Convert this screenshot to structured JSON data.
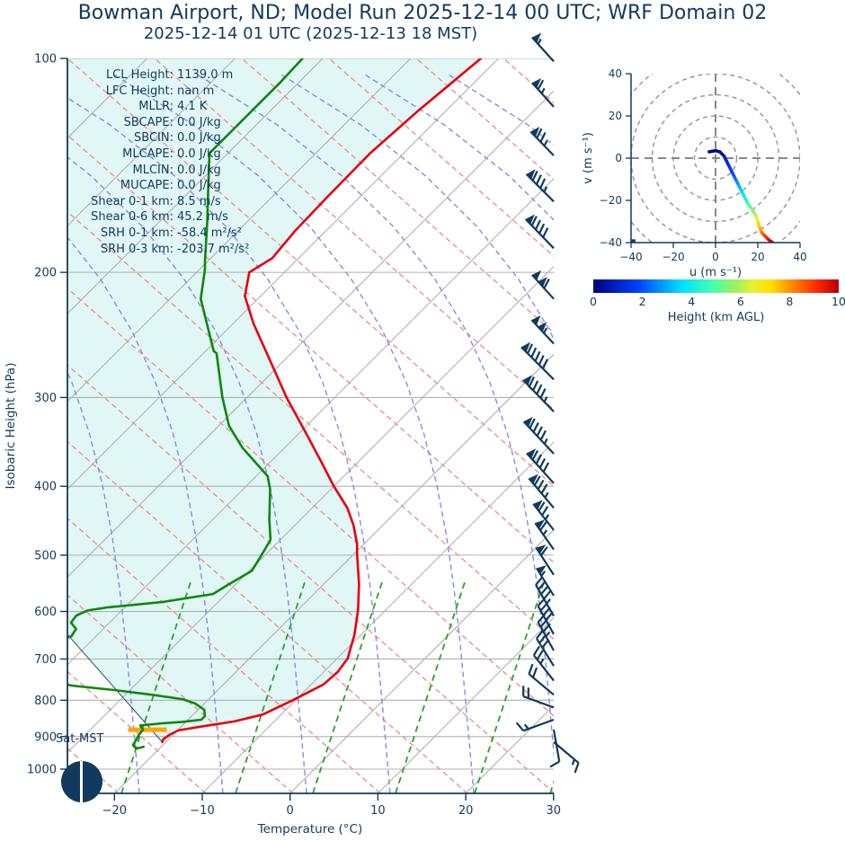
{
  "page": {
    "title": "Bowman Airport, ND; Model Run 2025-12-14 00 UTC; WRF Domain 02",
    "subtitle": "2025-12-14 01 UTC  (2025-12-13 18 MST)"
  },
  "skewt": {
    "xlabel": "Temperature (°C)",
    "ylabel": "Isobaric Height (hPa)",
    "x_tick_values": [
      -20,
      -10,
      0,
      10,
      20,
      30
    ],
    "x_tick_labels": [
      "−20",
      "−10",
      "0",
      "10",
      "20",
      "30"
    ],
    "y_tick_values": [
      100,
      200,
      300,
      400,
      500,
      600,
      700,
      800,
      900,
      1000
    ],
    "y_tick_labels": [
      "100",
      "200",
      "300",
      "400",
      "500",
      "600",
      "700",
      "800",
      "900",
      "1000"
    ],
    "surface_label": "Sat-MST",
    "moon_icon": "new-moon-dark-circle-with-vertical-line",
    "stats": [
      {
        "label": "LCL Height:",
        "value": "1139.0 m"
      },
      {
        "label": "LFC Height:",
        "value": "nan m"
      },
      {
        "label": "MLLR:",
        "value": "4.1 K"
      },
      {
        "label": "SBCAPE:",
        "value": "0.0 J/kg"
      },
      {
        "label": "SBCIN:",
        "value": "0.0 J/kg"
      },
      {
        "label": "MLCAPE:",
        "value": "0.0 J/kg"
      },
      {
        "label": "MLCIN:",
        "value": "0.0 J/kg"
      },
      {
        "label": "MUCAPE:",
        "value": "0.0 J/kg"
      },
      {
        "label": "Shear 0-1 km:",
        "value": "8.5 m/s"
      },
      {
        "label": "Shear 0-6 km:",
        "value": "45.2 m/s"
      },
      {
        "label": "SRH 0-1 km:",
        "value": "-58.4 m²/s²"
      },
      {
        "label": "SRH 0-3 km:",
        "value": "-203.7 m²/s²"
      }
    ],
    "colors": {
      "navy": "#123a5e",
      "temperature": "#e8000e",
      "dewpoint": "#0d870d",
      "isotherm_gray": "#b0b0b0",
      "dry_adiabat": "#f09090",
      "moist_adiabat": "#8a8ae8",
      "mixing_ratio": "#2ca02c",
      "shade_fill": "#e0f7f6",
      "lcl_marker": "#ffa500"
    }
  },
  "chart_data": [
    {
      "type": "line",
      "name": "skewt-sounding",
      "xlabel": "Temperature (°C)",
      "ylabel": "Isobaric Height (hPa)",
      "xlim": [
        -25.4,
        30
      ],
      "plim": [
        100,
        1081
      ],
      "skew_deg": 45,
      "series": [
        {
          "name": "temperature",
          "units": [
            "hPa",
            "degC"
          ],
          "points": [
            [
              100,
              -62.0
            ],
            [
              119,
              -63.2
            ],
            [
              136,
              -63.8
            ],
            [
              157,
              -63.7
            ],
            [
              175,
              -63.5
            ],
            [
              191,
              -63.0
            ],
            [
              200,
              -64.0
            ],
            [
              216,
              -61.8
            ],
            [
              236,
              -57.7
            ],
            [
              265,
              -51.8
            ],
            [
              300,
              -45.5
            ],
            [
              340,
              -38.7
            ],
            [
              371,
              -34.0
            ],
            [
              400,
              -30.0
            ],
            [
              429,
              -26.0
            ],
            [
              454,
              -23.3
            ],
            [
              482,
              -20.8
            ],
            [
              500,
              -19.5
            ],
            [
              549,
              -16.0
            ],
            [
              598,
              -13.1
            ],
            [
              648,
              -10.7
            ],
            [
              699,
              -8.8
            ],
            [
              730,
              -8.4
            ],
            [
              760,
              -8.6
            ],
            [
              800,
              -10.3
            ],
            [
              838,
              -12.1
            ],
            [
              857,
              -14.6
            ],
            [
              870,
              -17.5
            ],
            [
              882,
              -19.9
            ],
            [
              895,
              -20.4
            ],
            [
              908,
              -20.6
            ],
            [
              916,
              -20.4
            ]
          ]
        },
        {
          "name": "dewpoint",
          "units": [
            "hPa",
            "degC"
          ],
          "points": [
            [
              100,
              -82.3
            ],
            [
              108,
              -82.1
            ],
            [
              136,
              -82.1
            ],
            [
              153,
              -78.1
            ],
            [
              170,
              -74.5
            ],
            [
              193,
              -70.3
            ],
            [
              198,
              -69.4
            ],
            [
              218,
              -66.5
            ],
            [
              258,
              -59.1
            ],
            [
              260,
              -58.5
            ],
            [
              300,
              -52.8
            ],
            [
              329,
              -48.8
            ],
            [
              353,
              -44.8
            ],
            [
              387,
              -38.7
            ],
            [
              404,
              -36.9
            ],
            [
              445,
              -33.6
            ],
            [
              476,
              -31.1
            ],
            [
              500,
              -30.4
            ],
            [
              526,
              -29.7
            ],
            [
              552,
              -30.9
            ],
            [
              567,
              -31.5
            ],
            [
              582,
              -36.4
            ],
            [
              592,
              -41.9
            ],
            [
              598,
              -43.9
            ],
            [
              608,
              -44.6
            ],
            [
              622,
              -44.4
            ],
            [
              635,
              -43.1
            ],
            [
              650,
              -42.8
            ],
            [
              693,
              -46.5
            ],
            [
              745,
              -41.8
            ],
            [
              763,
              -37.1
            ],
            [
              774,
              -31.8
            ],
            [
              786,
              -26.9
            ],
            [
              797,
              -23.0
            ],
            [
              808,
              -21.1
            ],
            [
              825,
              -19.3
            ],
            [
              842,
              -18.5
            ],
            [
              852,
              -18.5
            ],
            [
              858,
              -20.4
            ],
            [
              862,
              -22.5
            ],
            [
              868,
              -24.8
            ],
            [
              880,
              -24.0
            ],
            [
              894,
              -23.9
            ],
            [
              910,
              -23.6
            ],
            [
              925,
              -23.4
            ],
            [
              936,
              -22.6
            ],
            [
              930,
              -22.0
            ]
          ]
        },
        {
          "name": "parcel-path",
          "units": [
            "hPa",
            "degC"
          ],
          "points": [
            [
              916,
              -20.4
            ],
            [
              646,
              -43.5
            ]
          ]
        }
      ],
      "lcl_marker": {
        "pressure": 880,
        "t_from": -25.7,
        "t_to": -21.3
      },
      "wind_barbs": [
        {
          "p": 101,
          "flags": 1,
          "barbs": 0,
          "halves": 1,
          "dir": 318
        },
        {
          "p": 117,
          "flags": 1,
          "barbs": 1,
          "halves": 1,
          "dir": 318
        },
        {
          "p": 137,
          "flags": 1,
          "barbs": 2,
          "halves": 1,
          "dir": 316
        },
        {
          "p": 159,
          "flags": 1,
          "barbs": 3,
          "halves": 1,
          "dir": 315
        },
        {
          "p": 185,
          "flags": 1,
          "barbs": 4,
          "halves": 0,
          "dir": 316
        },
        {
          "p": 218,
          "flags": 2,
          "barbs": 1,
          "halves": 0,
          "dir": 318
        },
        {
          "p": 252,
          "flags": 2,
          "barbs": 0,
          "halves": 1,
          "dir": 317
        },
        {
          "p": 283,
          "flags": 1,
          "barbs": 5,
          "halves": 0,
          "dir": 315
        },
        {
          "p": 314,
          "flags": 1,
          "barbs": 4,
          "halves": 1,
          "dir": 316
        },
        {
          "p": 360,
          "flags": 1,
          "barbs": 4,
          "halves": 1,
          "dir": 317
        },
        {
          "p": 396,
          "flags": 1,
          "barbs": 4,
          "halves": 0,
          "dir": 318
        },
        {
          "p": 429,
          "flags": 1,
          "barbs": 3,
          "halves": 1,
          "dir": 320
        },
        {
          "p": 461,
          "flags": 1,
          "barbs": 2,
          "halves": 1,
          "dir": 322
        },
        {
          "p": 491,
          "flags": 1,
          "barbs": 1,
          "halves": 1,
          "dir": 325
        },
        {
          "p": 533,
          "flags": 1,
          "barbs": 1,
          "halves": 0,
          "dir": 327
        },
        {
          "p": 570,
          "flags": 1,
          "barbs": 0,
          "halves": 1,
          "dir": 328
        },
        {
          "p": 609,
          "flags": 0,
          "barbs": 4,
          "halves": 1,
          "dir": 330
        },
        {
          "p": 646,
          "flags": 0,
          "barbs": 4,
          "halves": 0,
          "dir": 331
        },
        {
          "p": 681,
          "flags": 0,
          "barbs": 3,
          "halves": 1,
          "dir": 331
        },
        {
          "p": 716,
          "flags": 0,
          "barbs": 3,
          "halves": 0,
          "dir": 328
        },
        {
          "p": 751,
          "flags": 0,
          "barbs": 2,
          "halves": 1,
          "dir": 322
        },
        {
          "p": 786,
          "flags": 0,
          "barbs": 2,
          "halves": 0,
          "dir": 310
        },
        {
          "p": 819,
          "flags": 0,
          "barbs": 2,
          "halves": 0,
          "dir": 290
        },
        {
          "p": 852,
          "flags": 0,
          "barbs": 1,
          "halves": 1,
          "dir": 250
        },
        {
          "p": 880,
          "flags": 0,
          "barbs": 1,
          "halves": 0,
          "dir": 170
        },
        {
          "p": 916,
          "flags": 0,
          "barbs": 1,
          "halves": 1,
          "dir": 130
        }
      ]
    },
    {
      "type": "line",
      "name": "hodograph",
      "xlabel": "u (m s⁻¹)",
      "ylabel": "v (m s⁻¹)",
      "xlim": [
        -40,
        40
      ],
      "ylim": [
        -40,
        40
      ],
      "rings": [
        10,
        20,
        30,
        40,
        50
      ],
      "points_uvh": [
        [
          -3,
          3,
          0
        ],
        [
          0,
          3.5,
          0.1
        ],
        [
          2,
          3,
          0.3
        ],
        [
          4,
          1,
          0.6
        ],
        [
          5,
          -1,
          0.9
        ],
        [
          6,
          -3,
          1.2
        ],
        [
          7,
          -5,
          1.5
        ],
        [
          8,
          -7,
          1.8
        ],
        [
          9,
          -9,
          2.1
        ],
        [
          10,
          -11,
          2.5
        ],
        [
          11,
          -13,
          2.9
        ],
        [
          12,
          -15,
          3.3
        ],
        [
          13,
          -17,
          3.7
        ],
        [
          14,
          -19,
          4.1
        ],
        [
          15,
          -21,
          4.5
        ],
        [
          16,
          -22.5,
          4.9
        ],
        [
          17,
          -24,
          5.3
        ],
        [
          18,
          -25.5,
          5.7
        ],
        [
          19,
          -27,
          6.0
        ],
        [
          19.5,
          -28.5,
          6.4
        ],
        [
          20,
          -30,
          6.8
        ],
        [
          20.5,
          -31.5,
          7.2
        ],
        [
          21,
          -33,
          7.5
        ],
        [
          21.5,
          -34.5,
          7.9
        ],
        [
          22,
          -35.5,
          8.2
        ],
        [
          23,
          -36.5,
          8.6
        ],
        [
          24,
          -37.5,
          9.0
        ],
        [
          25,
          -38.5,
          9.4
        ],
        [
          26,
          -39.3,
          9.7
        ],
        [
          27,
          -40,
          10
        ]
      ],
      "corner_marker_uv": [
        -39,
        -39.5
      ]
    }
  ],
  "hodograph": {
    "xlabel": "u (m s⁻¹)",
    "ylabel": "v (m s⁻¹)",
    "tick_values": [
      -40,
      -20,
      0,
      20,
      40
    ],
    "tick_labels": [
      "−40",
      "−20",
      "0",
      "20",
      "40"
    ]
  },
  "colorbar": {
    "label": "Height (km AGL)",
    "tick_values": [
      0,
      2,
      4,
      6,
      8,
      10
    ],
    "min": 0,
    "max": 10,
    "jet_stops": [
      [
        0.0,
        "#000080"
      ],
      [
        0.18,
        "#0040ff"
      ],
      [
        0.36,
        "#00e0ff"
      ],
      [
        0.48,
        "#40ffb0"
      ],
      [
        0.58,
        "#a0f060"
      ],
      [
        0.65,
        "#e8f030"
      ],
      [
        0.72,
        "#ffe000"
      ],
      [
        0.82,
        "#ff8000"
      ],
      [
        0.92,
        "#ff2000"
      ],
      [
        1.0,
        "#b00000"
      ]
    ]
  }
}
